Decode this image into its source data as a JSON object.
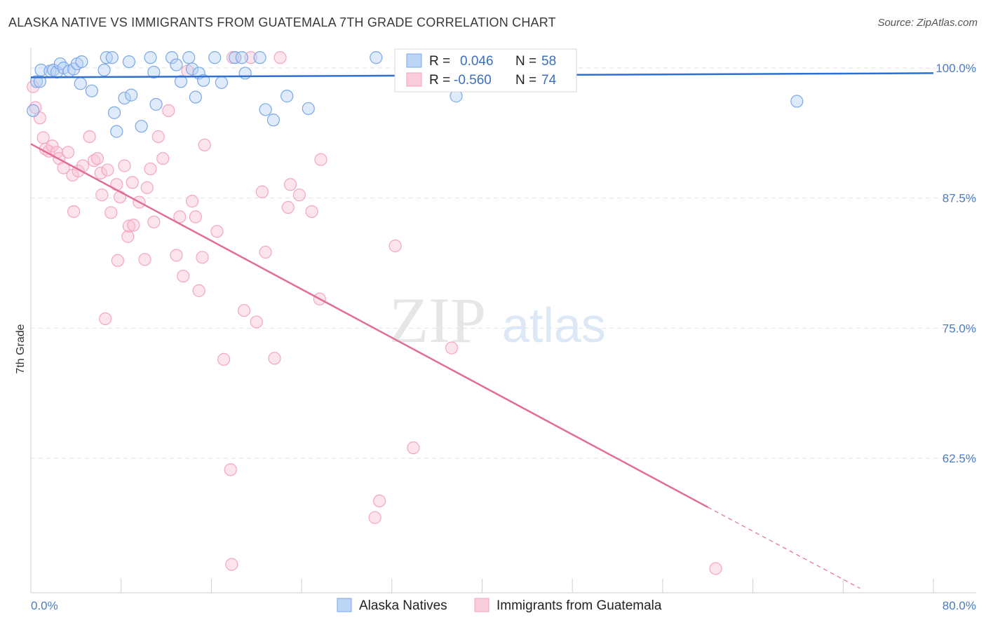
{
  "title": "ALASKA NATIVE VS IMMIGRANTS FROM GUATEMALA 7TH GRADE CORRELATION CHART",
  "source": "Source: ZipAtlas.com",
  "watermark": {
    "zip": "ZIP",
    "atlas": "atlas"
  },
  "legend": {
    "r_label": "R =",
    "n_label": "N =",
    "entries": [
      {
        "r": "0.046",
        "n": "58"
      },
      {
        "r": "-0.560",
        "n": "74"
      }
    ]
  },
  "chart_data": {
    "type": "scatter",
    "title": "ALASKA NATIVE VS IMMIGRANTS FROM GUATEMALA 7TH GRADE CORRELATION CHART",
    "xlabel": "",
    "ylabel": "7th Grade",
    "xlim": [
      0,
      80
    ],
    "ylim": [
      50,
      101
    ],
    "x_tick_labels": [
      "0.0%",
      "80.0%"
    ],
    "y_ticks": [
      {
        "value": 100,
        "label": "100.0%"
      },
      {
        "value": 87.5,
        "label": "87.5%"
      },
      {
        "value": 75,
        "label": "75.0%"
      },
      {
        "value": 62.5,
        "label": "62.5%"
      }
    ],
    "grid": true,
    "legend_position": "top-center",
    "series": [
      {
        "name": "Alaska Natives",
        "color": "#7aa8e8",
        "trend_color": "#2e6fd0",
        "trend": {
          "x": [
            0,
            80
          ],
          "y": [
            99.1,
            99.5
          ]
        },
        "points": [
          [
            0.2,
            95.9
          ],
          [
            0.5,
            98.7
          ],
          [
            0.8,
            98.7
          ],
          [
            0.9,
            99.8
          ],
          [
            1.7,
            99.7
          ],
          [
            2.0,
            99.8
          ],
          [
            2.3,
            99.6
          ],
          [
            2.6,
            100.4
          ],
          [
            2.9,
            100.0
          ],
          [
            3.4,
            99.7
          ],
          [
            3.8,
            99.9
          ],
          [
            4.1,
            100.4
          ],
          [
            4.4,
            98.5
          ],
          [
            4.5,
            100.6
          ],
          [
            5.4,
            97.8
          ],
          [
            6.5,
            99.8
          ],
          [
            6.7,
            101.0
          ],
          [
            7.2,
            101.0
          ],
          [
            7.4,
            95.7
          ],
          [
            7.6,
            93.9
          ],
          [
            8.3,
            97.1
          ],
          [
            8.7,
            100.6
          ],
          [
            8.9,
            97.4
          ],
          [
            9.8,
            94.4
          ],
          [
            10.6,
            101.0
          ],
          [
            10.9,
            99.6
          ],
          [
            11.1,
            96.5
          ],
          [
            12.5,
            101.0
          ],
          [
            12.9,
            100.3
          ],
          [
            13.3,
            98.7
          ],
          [
            14.0,
            101.0
          ],
          [
            14.3,
            99.9
          ],
          [
            14.6,
            97.2
          ],
          [
            14.9,
            99.5
          ],
          [
            15.3,
            98.8
          ],
          [
            16.3,
            101.0
          ],
          [
            16.9,
            98.6
          ],
          [
            18.1,
            101.0
          ],
          [
            18.7,
            101.0
          ],
          [
            19.0,
            99.5
          ],
          [
            20.3,
            101.0
          ],
          [
            20.8,
            96.0
          ],
          [
            21.5,
            95.0
          ],
          [
            22.7,
            97.3
          ],
          [
            24.6,
            96.1
          ],
          [
            30.6,
            101.0
          ],
          [
            37.7,
            97.3
          ],
          [
            38.5,
            101.0
          ],
          [
            42.0,
            101.0
          ],
          [
            67.9,
            96.8
          ]
        ]
      },
      {
        "name": "Immigrants from Guatemala",
        "color": "#f4a6bf",
        "trend_color": "#e16d98",
        "trend": {
          "x": [
            0,
            60.0
          ],
          "y": [
            92.7,
            57.8
          ]
        },
        "trend_dashed": {
          "x": [
            60.0,
            73.5
          ],
          "y": [
            57.8,
            50.0
          ]
        },
        "points": [
          [
            0.2,
            98.2
          ],
          [
            0.4,
            96.2
          ],
          [
            0.8,
            95.2
          ],
          [
            1.1,
            93.3
          ],
          [
            1.3,
            92.2
          ],
          [
            1.6,
            92.0
          ],
          [
            1.9,
            92.5
          ],
          [
            2.3,
            91.9
          ],
          [
            2.5,
            91.3
          ],
          [
            2.9,
            90.4
          ],
          [
            3.3,
            91.9
          ],
          [
            3.7,
            89.7
          ],
          [
            3.8,
            86.2
          ],
          [
            4.2,
            90.1
          ],
          [
            4.6,
            90.6
          ],
          [
            5.2,
            93.4
          ],
          [
            5.6,
            91.1
          ],
          [
            5.9,
            91.3
          ],
          [
            6.2,
            89.9
          ],
          [
            6.3,
            87.8
          ],
          [
            6.6,
            75.9
          ],
          [
            6.8,
            90.2
          ],
          [
            7.1,
            86.1
          ],
          [
            7.6,
            88.8
          ],
          [
            7.7,
            81.5
          ],
          [
            7.9,
            87.6
          ],
          [
            8.3,
            90.6
          ],
          [
            8.6,
            83.8
          ],
          [
            8.7,
            84.8
          ],
          [
            9.0,
            89.0
          ],
          [
            9.1,
            84.9
          ],
          [
            9.6,
            87.1
          ],
          [
            10.1,
            81.6
          ],
          [
            10.3,
            88.5
          ],
          [
            10.6,
            90.3
          ],
          [
            10.9,
            85.2
          ],
          [
            11.3,
            93.4
          ],
          [
            11.7,
            91.3
          ],
          [
            12.2,
            95.9
          ],
          [
            12.9,
            82.0
          ],
          [
            13.2,
            85.7
          ],
          [
            13.5,
            80.0
          ],
          [
            13.9,
            99.7
          ],
          [
            14.3,
            87.2
          ],
          [
            14.6,
            85.7
          ],
          [
            14.9,
            78.6
          ],
          [
            15.2,
            81.8
          ],
          [
            15.4,
            92.6
          ],
          [
            16.5,
            84.3
          ],
          [
            17.1,
            72.0
          ],
          [
            17.7,
            61.4
          ],
          [
            17.8,
            52.3
          ],
          [
            17.9,
            101.0
          ],
          [
            18.9,
            76.7
          ],
          [
            19.5,
            101.0
          ],
          [
            20.0,
            75.6
          ],
          [
            20.8,
            82.3
          ],
          [
            20.5,
            88.1
          ],
          [
            21.6,
            72.1
          ],
          [
            22.1,
            101.0
          ],
          [
            22.8,
            86.6
          ],
          [
            23.0,
            88.8
          ],
          [
            23.8,
            87.8
          ],
          [
            24.9,
            86.2
          ],
          [
            25.6,
            77.8
          ],
          [
            25.7,
            91.2
          ],
          [
            30.5,
            56.8
          ],
          [
            30.9,
            58.4
          ],
          [
            32.3,
            82.9
          ],
          [
            33.9,
            63.5
          ],
          [
            37.3,
            73.1
          ],
          [
            40.0,
            101.0
          ],
          [
            60.7,
            51.9
          ]
        ]
      }
    ]
  }
}
